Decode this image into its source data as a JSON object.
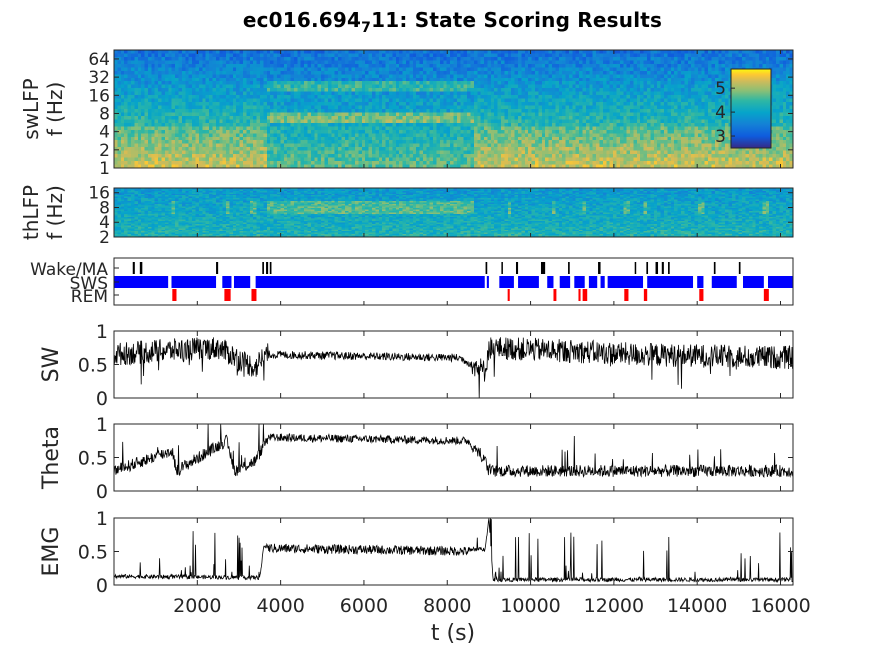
{
  "figure": {
    "title_main": "ec016.694",
    "title_sub": "7",
    "title_tail": "11: State Scoring Results"
  },
  "chart_data": [
    {
      "type": "heatmap",
      "id": "swLFP",
      "ylabel": [
        "swLFP",
        "f (Hz)"
      ],
      "yticks": [
        "1",
        "2",
        "4",
        "8",
        "16",
        "32",
        "64"
      ],
      "yscale": "log2",
      "ylim": [
        1,
        90
      ],
      "xlim": [
        0,
        16300
      ],
      "colorbar": {
        "ticks": [
          "3",
          "4",
          "5"
        ],
        "range": [
          2.5,
          5.8
        ],
        "colormap": "parula"
      },
      "bands": [
        {
          "name": "tone-22Hz",
          "freq": 22,
          "x": [
            3700,
            8600
          ]
        },
        {
          "name": "tone-7Hz",
          "freq": 7,
          "x": [
            3700,
            8600
          ]
        }
      ]
    },
    {
      "type": "heatmap",
      "id": "thLFP",
      "ylabel": [
        "thLFP",
        "f (Hz)"
      ],
      "yticks": [
        "2",
        "4",
        "8",
        "16"
      ],
      "yscale": "log2",
      "ylim": [
        2,
        20
      ],
      "xlim": [
        0,
        16300
      ],
      "bands": [
        {
          "name": "tone-8Hz",
          "freq": 8,
          "x": [
            3700,
            8600
          ]
        }
      ]
    },
    {
      "type": "scatter",
      "id": "states",
      "categories": [
        "Wake/MA",
        "SWS",
        "REM"
      ],
      "colors": {
        "Wake/MA": "#000000",
        "SWS": "#0000ff",
        "REM": "#ff0000"
      },
      "sws_blocks": [
        [
          0,
          1300
        ],
        [
          1380,
          2450
        ],
        [
          2600,
          2820
        ],
        [
          2880,
          3270
        ],
        [
          3400,
          8900
        ],
        [
          8950,
          9000
        ],
        [
          9250,
          9600
        ],
        [
          9700,
          10200
        ],
        [
          10400,
          10550
        ],
        [
          10700,
          10950
        ],
        [
          11050,
          11300
        ],
        [
          11400,
          11600
        ],
        [
          11680,
          11780
        ],
        [
          11850,
          12700
        ],
        [
          12800,
          13900
        ],
        [
          14000,
          14150
        ],
        [
          14350,
          14950
        ],
        [
          15100,
          15600
        ],
        [
          15700,
          16300
        ]
      ],
      "rem_blocks": [
        [
          1400,
          1500
        ],
        [
          2650,
          2800
        ],
        [
          3300,
          3420
        ],
        [
          9450,
          9500
        ],
        [
          10550,
          10620
        ],
        [
          11150,
          11200
        ],
        [
          11250,
          11360
        ],
        [
          12250,
          12350
        ],
        [
          12720,
          12800
        ],
        [
          14050,
          14150
        ],
        [
          15600,
          15720
        ]
      ],
      "wake_blocks": [
        [
          450,
          500
        ],
        [
          620,
          680
        ],
        [
          2450,
          2500
        ],
        [
          3560,
          3600
        ],
        [
          3650,
          3700
        ],
        [
          3740,
          3780
        ],
        [
          8920,
          8960
        ],
        [
          9300,
          9320
        ],
        [
          9650,
          9700
        ],
        [
          10250,
          10350
        ],
        [
          10900,
          10940
        ],
        [
          11620,
          11680
        ],
        [
          12500,
          12530
        ],
        [
          12780,
          12820
        ],
        [
          13000,
          13060
        ],
        [
          13150,
          13200
        ],
        [
          13300,
          13340
        ],
        [
          14400,
          14440
        ],
        [
          15000,
          15040
        ]
      ]
    },
    {
      "type": "line",
      "id": "SW",
      "ylabel": "SW",
      "yticks": [
        "0",
        "0.5",
        "1"
      ],
      "ylim": [
        0,
        1
      ],
      "xlim": [
        0,
        16300
      ],
      "color": "#000000",
      "levels": [
        [
          0,
          0.65
        ],
        [
          1000,
          0.7
        ],
        [
          2500,
          0.75
        ],
        [
          3400,
          0.45
        ],
        [
          3600,
          0.65
        ],
        [
          8300,
          0.6
        ],
        [
          8900,
          0.4
        ],
        [
          9000,
          0.75
        ],
        [
          11000,
          0.7
        ],
        [
          12500,
          0.65
        ],
        [
          16300,
          0.6
        ]
      ]
    },
    {
      "type": "line",
      "id": "Theta",
      "ylabel": "Theta",
      "yticks": [
        "0",
        "0.5",
        "1"
      ],
      "ylim": [
        0,
        1
      ],
      "xlim": [
        0,
        16300
      ],
      "color": "#000000",
      "levels": [
        [
          0,
          0.3
        ],
        [
          1400,
          0.6
        ],
        [
          1500,
          0.3
        ],
        [
          2700,
          0.75
        ],
        [
          2900,
          0.3
        ],
        [
          3400,
          0.45
        ],
        [
          3700,
          0.8
        ],
        [
          8500,
          0.75
        ],
        [
          8900,
          0.45
        ],
        [
          9000,
          0.3
        ],
        [
          16300,
          0.3
        ]
      ]
    },
    {
      "type": "line",
      "id": "EMG",
      "ylabel": "EMG",
      "yticks": [
        "0",
        "0.5",
        "1"
      ],
      "ylim": [
        0,
        1
      ],
      "xlim": [
        0,
        16300
      ],
      "color": "#000000",
      "levels": [
        [
          0,
          0.1
        ],
        [
          3500,
          0.08
        ],
        [
          3600,
          0.55
        ],
        [
          8900,
          0.5
        ],
        [
          9000,
          0.95
        ],
        [
          9100,
          0.05
        ],
        [
          16300,
          0.05
        ]
      ]
    }
  ],
  "xaxis": {
    "label": "t (s)",
    "ticks": [
      "2000",
      "4000",
      "6000",
      "8000",
      "10000",
      "12000",
      "14000",
      "16000"
    ],
    "tick_values": [
      2000,
      4000,
      6000,
      8000,
      10000,
      12000,
      14000,
      16000
    ]
  }
}
